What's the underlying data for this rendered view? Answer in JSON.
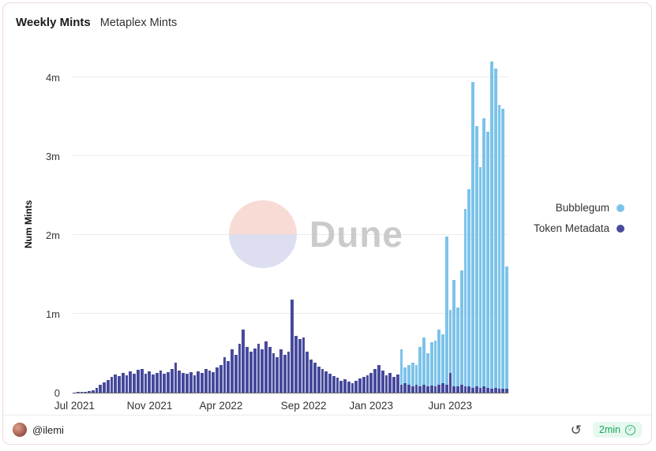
{
  "header": {
    "title": "Weekly Mints",
    "subtitle": "Metaplex Mints"
  },
  "watermark": {
    "text": "Dune"
  },
  "icons": {
    "refresh": "↺",
    "check": "✓",
    "dune_logo": "dune-pie-circle"
  },
  "footer": {
    "author": "@ilemi",
    "refreshed": "2min"
  },
  "colors": {
    "bubblegum": "#7cc3ea",
    "token_metadata": "#474a9d",
    "card_border": "#f1d8d8",
    "badge_green": "#17a85c",
    "gridline": "#ebebeb"
  },
  "chart_data": {
    "type": "bar",
    "stacked": true,
    "title": "Weekly Mints",
    "xlabel": "",
    "ylabel": "Num Mints",
    "x_unit": "week",
    "ylim": [
      0,
      4.3
    ],
    "grid": true,
    "legend_position": "right",
    "y_ticks": [
      {
        "label": "0",
        "value": 0
      },
      {
        "label": "1m",
        "value": 1
      },
      {
        "label": "2m",
        "value": 2
      },
      {
        "label": "3m",
        "value": 3
      },
      {
        "label": "4m",
        "value": 4
      }
    ],
    "x_ticks": [
      {
        "label": "Jul 2021",
        "index": 0
      },
      {
        "label": "Nov 2021",
        "index": 20
      },
      {
        "label": "Apr 2022",
        "index": 39
      },
      {
        "label": "Sep 2022",
        "index": 61
      },
      {
        "label": "Jan 2023",
        "index": 79
      },
      {
        "label": "Jun 2023",
        "index": 100
      }
    ],
    "value_unit": "millions of mints",
    "series": [
      {
        "name": "Bubblegum",
        "color": "#7cc3ea",
        "values": [
          0,
          0,
          0,
          0,
          0,
          0,
          0,
          0,
          0,
          0,
          0,
          0,
          0,
          0,
          0,
          0,
          0,
          0,
          0,
          0,
          0,
          0,
          0,
          0,
          0,
          0,
          0,
          0,
          0,
          0,
          0,
          0,
          0,
          0,
          0,
          0,
          0,
          0,
          0,
          0,
          0,
          0,
          0,
          0,
          0,
          0,
          0,
          0,
          0,
          0,
          0,
          0,
          0,
          0,
          0,
          0,
          0,
          0,
          0,
          0,
          0,
          0,
          0,
          0,
          0,
          0,
          0,
          0,
          0,
          0,
          0,
          0,
          0,
          0,
          0,
          0,
          0,
          0,
          0,
          0,
          0,
          0,
          0,
          0,
          0,
          0,
          0,
          0.45,
          0.2,
          0.25,
          0.3,
          0.25,
          0.5,
          0.6,
          0.42,
          0.55,
          0.58,
          0.7,
          0.62,
          1.88,
          0.8,
          1.35,
          1.0,
          1.45,
          2.25,
          2.5,
          3.88,
          3.3,
          2.8,
          3.4,
          3.25,
          4.15,
          4.05,
          3.6,
          3.55,
          1.55
        ]
      },
      {
        "name": "Token Metadata",
        "color": "#474a9d",
        "values": [
          0.005,
          0.008,
          0.01,
          0.015,
          0.02,
          0.03,
          0.06,
          0.1,
          0.13,
          0.16,
          0.2,
          0.23,
          0.21,
          0.25,
          0.22,
          0.27,
          0.24,
          0.29,
          0.3,
          0.24,
          0.27,
          0.23,
          0.25,
          0.28,
          0.24,
          0.26,
          0.3,
          0.38,
          0.28,
          0.25,
          0.24,
          0.26,
          0.22,
          0.27,
          0.25,
          0.3,
          0.28,
          0.26,
          0.32,
          0.35,
          0.45,
          0.4,
          0.55,
          0.48,
          0.62,
          0.8,
          0.58,
          0.52,
          0.56,
          0.62,
          0.55,
          0.65,
          0.58,
          0.5,
          0.45,
          0.55,
          0.48,
          0.52,
          1.18,
          0.72,
          0.68,
          0.7,
          0.52,
          0.42,
          0.38,
          0.33,
          0.3,
          0.27,
          0.24,
          0.21,
          0.19,
          0.15,
          0.17,
          0.14,
          0.12,
          0.15,
          0.18,
          0.2,
          0.22,
          0.25,
          0.3,
          0.35,
          0.28,
          0.22,
          0.25,
          0.2,
          0.23,
          0.1,
          0.12,
          0.1,
          0.08,
          0.1,
          0.08,
          0.1,
          0.08,
          0.09,
          0.08,
          0.1,
          0.12,
          0.1,
          0.25,
          0.08,
          0.08,
          0.1,
          0.08,
          0.08,
          0.06,
          0.08,
          0.06,
          0.08,
          0.06,
          0.05,
          0.06,
          0.05,
          0.05,
          0.05
        ]
      }
    ]
  }
}
